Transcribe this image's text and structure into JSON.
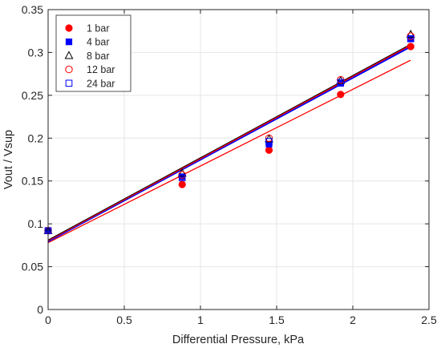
{
  "chart_data": {
    "type": "scatter",
    "xlabel": "Differential Pressure, kPa",
    "ylabel": "Vout / Vsup",
    "xlim": [
      0,
      2.5
    ],
    "ylim": [
      0,
      0.35
    ],
    "xticks": [
      "0",
      "0.5",
      "1",
      "1.5",
      "2",
      "2.5"
    ],
    "yticks": [
      "0",
      "0.05",
      "0.1",
      "0.15",
      "0.2",
      "0.25",
      "0.3",
      "0.35"
    ],
    "grid": true,
    "legend_position": "top-left",
    "x": [
      0.0,
      0.88,
      1.45,
      1.92,
      2.38
    ],
    "series": [
      {
        "name": "1 bar",
        "marker": "filled-circle",
        "color": "#ff0000",
        "values": [
          0.092,
          0.146,
          0.186,
          0.251,
          0.307
        ],
        "fit": {
          "intercept": 0.078,
          "slope": 0.0895
        }
      },
      {
        "name": "4 bar",
        "marker": "filled-square",
        "color": "#0000ff",
        "values": [
          0.092,
          0.155,
          0.193,
          0.264,
          0.316
        ],
        "fit": {
          "intercept": 0.08,
          "slope": 0.0955
        }
      },
      {
        "name": "8 bar",
        "marker": "open-triangle",
        "color": "#000000",
        "values": [
          0.092,
          0.159,
          0.199,
          0.267,
          0.321
        ],
        "fit": {
          "intercept": 0.081,
          "slope": 0.096
        }
      },
      {
        "name": "12 bar",
        "marker": "open-circle",
        "color": "#ff0000",
        "values": [
          0.092,
          0.157,
          0.2,
          0.268,
          0.319
        ],
        "fit": {
          "intercept": 0.08,
          "slope": 0.096
        }
      },
      {
        "name": "24 bar",
        "marker": "open-square",
        "color": "#0000ff",
        "values": [
          0.092,
          0.154,
          0.196,
          0.265,
          0.316
        ],
        "fit": {
          "intercept": 0.079,
          "slope": 0.0955
        }
      }
    ]
  }
}
